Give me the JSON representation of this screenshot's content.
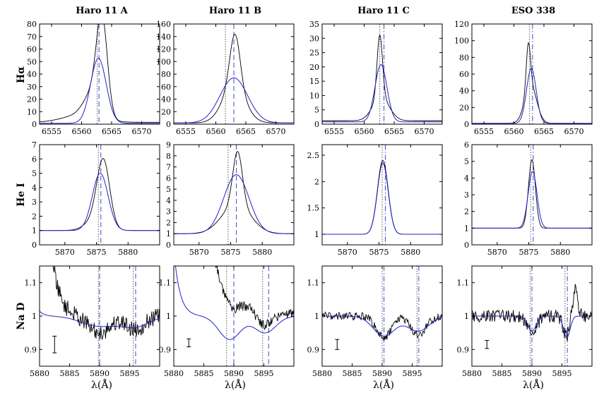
{
  "figure": {
    "columns": [
      "Haro 11 A",
      "Haro 11 B",
      "Haro 11 C",
      "ESO 338"
    ],
    "rows": [
      "Hα",
      "He I",
      "Na D"
    ],
    "xlabel": "λ(Å)"
  },
  "colors": {
    "data_line": "#000000",
    "model_line": "#2222cc",
    "vline": "#4444cc",
    "axis": "#000000"
  },
  "chart_data": [
    {
      "type": "line",
      "panel": "Haro 11 A / Hα",
      "column": "Haro 11 A",
      "row": "Hα",
      "xlim": [
        6553,
        6573
      ],
      "ylim": [
        0,
        80
      ],
      "xticks": [
        6555,
        6560,
        6565,
        6570
      ],
      "yticks": [
        0,
        10,
        20,
        30,
        40,
        50,
        60,
        70,
        80
      ],
      "series": [
        {
          "name": "observed",
          "style": "data",
          "comps": [
            [
              6563.4,
              75,
              0.9
            ],
            [
              6561.8,
              18,
              1.4
            ],
            [
              6560,
              6,
              3
            ]
          ],
          "base": 1.5
        },
        {
          "name": "model",
          "style": "model",
          "comps": [
            [
              6562.8,
              52,
              1.3
            ]
          ],
          "base": 0.7
        }
      ],
      "vlines": [
        {
          "x": 6562.6,
          "style": "dotted"
        },
        {
          "x": 6562.9,
          "style": "dashed"
        }
      ]
    },
    {
      "type": "line",
      "panel": "Haro 11 B / Hα",
      "column": "Haro 11 B",
      "row": "Hα",
      "xlim": [
        6553,
        6573
      ],
      "ylim": [
        0,
        160
      ],
      "xticks": [
        6555,
        6560,
        6565,
        6570
      ],
      "yticks": [
        0,
        20,
        40,
        60,
        80,
        100,
        120,
        140,
        160
      ],
      "series": [
        {
          "name": "observed",
          "style": "data",
          "comps": [
            [
              6563.2,
              85,
              0.85
            ],
            [
              6563.0,
              57,
              1.9
            ]
          ],
          "base": 2
        },
        {
          "name": "model",
          "style": "model",
          "comps": [
            [
              6563.0,
              72,
              2.3
            ]
          ],
          "base": 2
        }
      ],
      "vlines": [
        {
          "x": 6561.6,
          "style": "dotted"
        },
        {
          "x": 6563.0,
          "style": "dashed"
        }
      ]
    },
    {
      "type": "line",
      "panel": "Haro 11 C / Hα",
      "column": "Haro 11 C",
      "row": "Hα",
      "xlim": [
        6553,
        6573
      ],
      "ylim": [
        0,
        35
      ],
      "xticks": [
        6555,
        6560,
        6565,
        6570
      ],
      "yticks": [
        0,
        5,
        10,
        15,
        20,
        25,
        30,
        35
      ],
      "series": [
        {
          "name": "observed",
          "style": "data",
          "comps": [
            [
              6562.6,
              22,
              0.45
            ],
            [
              6562.8,
              8,
              1.4
            ]
          ],
          "base": 1.2
        },
        {
          "name": "model",
          "style": "model",
          "comps": [
            [
              6562.8,
              20,
              1.0
            ]
          ],
          "base": 0.8
        }
      ],
      "vlines": [
        {
          "x": 6562.6,
          "style": "dotted"
        },
        {
          "x": 6563.3,
          "style": "dashdot"
        }
      ]
    },
    {
      "type": "line",
      "panel": "ESO 338 / Hα",
      "column": "ESO 338",
      "row": "Hα",
      "xlim": [
        6553,
        6573
      ],
      "ylim": [
        0,
        120
      ],
      "xticks": [
        6555,
        6560,
        6565,
        6570
      ],
      "yticks": [
        0,
        20,
        40,
        60,
        80,
        100,
        120
      ],
      "series": [
        {
          "name": "observed",
          "style": "data",
          "comps": [
            [
              6562.4,
              55,
              0.35
            ],
            [
              6562.8,
              45,
              1.0
            ]
          ],
          "base": 1
        },
        {
          "name": "model",
          "style": "model",
          "comps": [
            [
              6562.9,
              66,
              0.8
            ]
          ],
          "base": 1
        }
      ],
      "vlines": [
        {
          "x": 6562.6,
          "style": "dotted"
        },
        {
          "x": 6563.1,
          "style": "dashdot"
        }
      ]
    },
    {
      "type": "line",
      "panel": "Haro 11 A / He I",
      "column": "Haro 11 A",
      "row": "He I",
      "xlim": [
        5866,
        5885
      ],
      "ylim": [
        0,
        7
      ],
      "xticks": [
        5870,
        5875,
        5880
      ],
      "yticks": [
        0,
        1,
        2,
        3,
        4,
        5,
        6,
        7
      ],
      "series": [
        {
          "name": "observed",
          "style": "data",
          "comps": [
            [
              5876.1,
              4.4,
              1.0
            ],
            [
              5875.0,
              0.8,
              1.6
            ]
          ],
          "base": 1.0
        },
        {
          "name": "model",
          "style": "model",
          "comps": [
            [
              5875.6,
              4.0,
              1.25
            ]
          ],
          "base": 1.0
        }
      ],
      "vlines": [
        {
          "x": 5875.3,
          "style": "dotted"
        },
        {
          "x": 5875.7,
          "style": "dashed"
        }
      ]
    },
    {
      "type": "line",
      "panel": "Haro 11 B / He I",
      "column": "Haro 11 B",
      "row": "He I",
      "xlim": [
        5866,
        5885
      ],
      "ylim": [
        0,
        9
      ],
      "xticks": [
        5870,
        5875,
        5880
      ],
      "yticks": [
        0,
        1,
        2,
        3,
        4,
        5,
        6,
        7,
        8,
        9
      ],
      "series": [
        {
          "name": "observed",
          "style": "data",
          "comps": [
            [
              5876.1,
              4.8,
              0.75
            ],
            [
              5875.9,
              2.6,
              2.3
            ]
          ],
          "base": 1.0
        },
        {
          "name": "model",
          "style": "model",
          "comps": [
            [
              5875.9,
              5.3,
              2.0
            ]
          ],
          "base": 1.0
        }
      ],
      "vlines": [
        {
          "x": 5874.6,
          "style": "dotted"
        },
        {
          "x": 5875.9,
          "style": "dashed"
        }
      ]
    },
    {
      "type": "line",
      "panel": "Haro 11 C / He I",
      "column": "Haro 11 C",
      "row": "He I",
      "xlim": [
        5866,
        5885
      ],
      "ylim": [
        0.8,
        2.7
      ],
      "xticks": [
        5870,
        5875,
        5880
      ],
      "yticks": [
        1.0,
        1.5,
        2.0,
        2.5
      ],
      "series": [
        {
          "name": "observed",
          "style": "data",
          "comps": [
            [
              5875.6,
              1.4,
              0.85
            ]
          ],
          "base": 1.0
        },
        {
          "name": "model",
          "style": "model",
          "comps": [
            [
              5875.6,
              1.35,
              0.85
            ]
          ],
          "base": 1.0
        }
      ],
      "vlines": [
        {
          "x": 5875.5,
          "style": "dotted"
        },
        {
          "x": 5876.0,
          "style": "dashdot"
        }
      ]
    },
    {
      "type": "line",
      "panel": "ESO 338 / He I",
      "column": "ESO 338",
      "row": "He I",
      "xlim": [
        5866,
        5885
      ],
      "ylim": [
        0,
        6
      ],
      "xticks": [
        5870,
        5875,
        5880
      ],
      "yticks": [
        0,
        1,
        2,
        3,
        4,
        5,
        6
      ],
      "series": [
        {
          "name": "observed",
          "style": "data",
          "comps": [
            [
              5875.5,
              4.1,
              0.55
            ]
          ],
          "base": 1.0
        },
        {
          "name": "model",
          "style": "model",
          "comps": [
            [
              5875.6,
              3.4,
              0.7
            ]
          ],
          "base": 1.0
        }
      ],
      "vlines": [
        {
          "x": 5875.3,
          "style": "dotted"
        },
        {
          "x": 5875.7,
          "style": "dashdot"
        }
      ]
    },
    {
      "type": "line",
      "panel": "Haro 11 A / Na D",
      "column": "Haro 11 A",
      "row": "Na D",
      "xlim": [
        5880,
        5900
      ],
      "ylim": [
        0.85,
        1.15
      ],
      "xticks": [
        5880,
        5885,
        5890,
        5895
      ],
      "yticks": [
        0.9,
        1.0,
        1.1
      ],
      "series": [
        {
          "name": "observed",
          "style": "data",
          "comps": [
            [
              5890,
              -0.05,
              1.8
            ],
            [
              5896,
              -0.04,
              1.5
            ]
          ],
          "base": 1.0,
          "noise": 0.025,
          "start": [
            1.09,
            1.2
          ]
        },
        {
          "name": "model",
          "style": "model",
          "comps": [
            [
              5890,
              -0.03,
              3.0
            ],
            [
              5896,
              -0.03,
              2.3
            ]
          ],
          "base": 1.0,
          "start": [
            0.015,
            0.8
          ]
        }
      ],
      "vlines": [
        {
          "x": 5889.8,
          "style": "dotted"
        },
        {
          "x": 5890.0,
          "style": "dashed"
        },
        {
          "x": 5895.6,
          "style": "dotted"
        },
        {
          "x": 5896.0,
          "style": "dashed"
        }
      ],
      "errorbar": {
        "x": 5882.5,
        "y": 0.915,
        "err": 0.025
      }
    },
    {
      "type": "line",
      "panel": "Haro 11 B / Na D",
      "column": "Haro 11 B",
      "row": "Na D",
      "xlim": [
        5880,
        5900
      ],
      "ylim": [
        0.85,
        1.15
      ],
      "xticks": [
        5880,
        5885,
        5890,
        5895
      ],
      "yticks": [
        0.9,
        1.0,
        1.1
      ],
      "series": [
        {
          "name": "observed",
          "style": "data",
          "comps": [
            [
              5889.2,
              -0.07,
              1.6
            ],
            [
              5895,
              -0.05,
              1.5
            ]
          ],
          "base": 1.0,
          "noise": 0.015,
          "start": [
            1.05,
            4.0
          ]
        },
        {
          "name": "model",
          "style": "model",
          "comps": [
            [
              5889.3,
              -0.07,
              1.8
            ],
            [
              5895.2,
              -0.05,
              1.8
            ]
          ],
          "base": 1.0,
          "start": [
            0.2,
            1.0
          ]
        }
      ],
      "vlines": [
        {
          "x": 5888.8,
          "style": "dotted"
        },
        {
          "x": 5890.0,
          "style": "dashed"
        },
        {
          "x": 5894.8,
          "style": "dotted"
        },
        {
          "x": 5895.8,
          "style": "dashed"
        }
      ],
      "errorbar": {
        "x": 5882.5,
        "y": 0.92,
        "err": 0.012
      }
    },
    {
      "type": "line",
      "panel": "Haro 11 C / Na D",
      "column": "Haro 11 C",
      "row": "Na D",
      "xlim": [
        5880,
        5900
      ],
      "ylim": [
        0.85,
        1.15
      ],
      "xticks": [
        5880,
        5885,
        5890,
        5895
      ],
      "yticks": [
        0.9,
        1.0,
        1.1
      ],
      "series": [
        {
          "name": "observed",
          "style": "data",
          "comps": [
            [
              5890.3,
              -0.065,
              1.2
            ],
            [
              5896,
              -0.055,
              1.3
            ]
          ],
          "base": 1.0,
          "noise": 0.012
        },
        {
          "name": "model",
          "style": "model",
          "comps": [
            [
              5890.3,
              -0.06,
              1.8
            ],
            [
              5896,
              -0.045,
              1.8
            ]
          ],
          "base": 1.0
        }
      ],
      "vlines": [
        {
          "x": 5890.0,
          "style": "dotted"
        },
        {
          "x": 5890.3,
          "style": "dashdot"
        },
        {
          "x": 5895.8,
          "style": "dotted"
        },
        {
          "x": 5896.1,
          "style": "dashdot"
        }
      ],
      "errorbar": {
        "x": 5882.5,
        "y": 0.915,
        "err": 0.015
      }
    },
    {
      "type": "line",
      "panel": "ESO 338 / Na D",
      "column": "ESO 338",
      "row": "Na D",
      "xlim": [
        5880,
        5900
      ],
      "ylim": [
        0.85,
        1.15
      ],
      "xticks": [
        5880,
        5885,
        5890,
        5895
      ],
      "yticks": [
        0.9,
        1.0,
        1.1
      ],
      "series": [
        {
          "name": "observed",
          "style": "data",
          "comps": [
            [
              5890,
              -0.05,
              0.8
            ],
            [
              5895.7,
              -0.06,
              0.5
            ],
            [
              5897.2,
              0.08,
              0.4
            ]
          ],
          "base": 1.0,
          "noise": 0.02
        },
        {
          "name": "model",
          "style": "model",
          "comps": [
            [
              5890,
              -0.045,
              0.7
            ],
            [
              5895.8,
              -0.065,
              0.55
            ]
          ],
          "base": 1.0
        }
      ],
      "vlines": [
        {
          "x": 5889.7,
          "style": "dotted"
        },
        {
          "x": 5890.0,
          "style": "dashdot"
        },
        {
          "x": 5895.5,
          "style": "dotted"
        },
        {
          "x": 5895.9,
          "style": "dashdot"
        }
      ],
      "errorbar": {
        "x": 5882.5,
        "y": 0.915,
        "err": 0.012
      }
    }
  ]
}
